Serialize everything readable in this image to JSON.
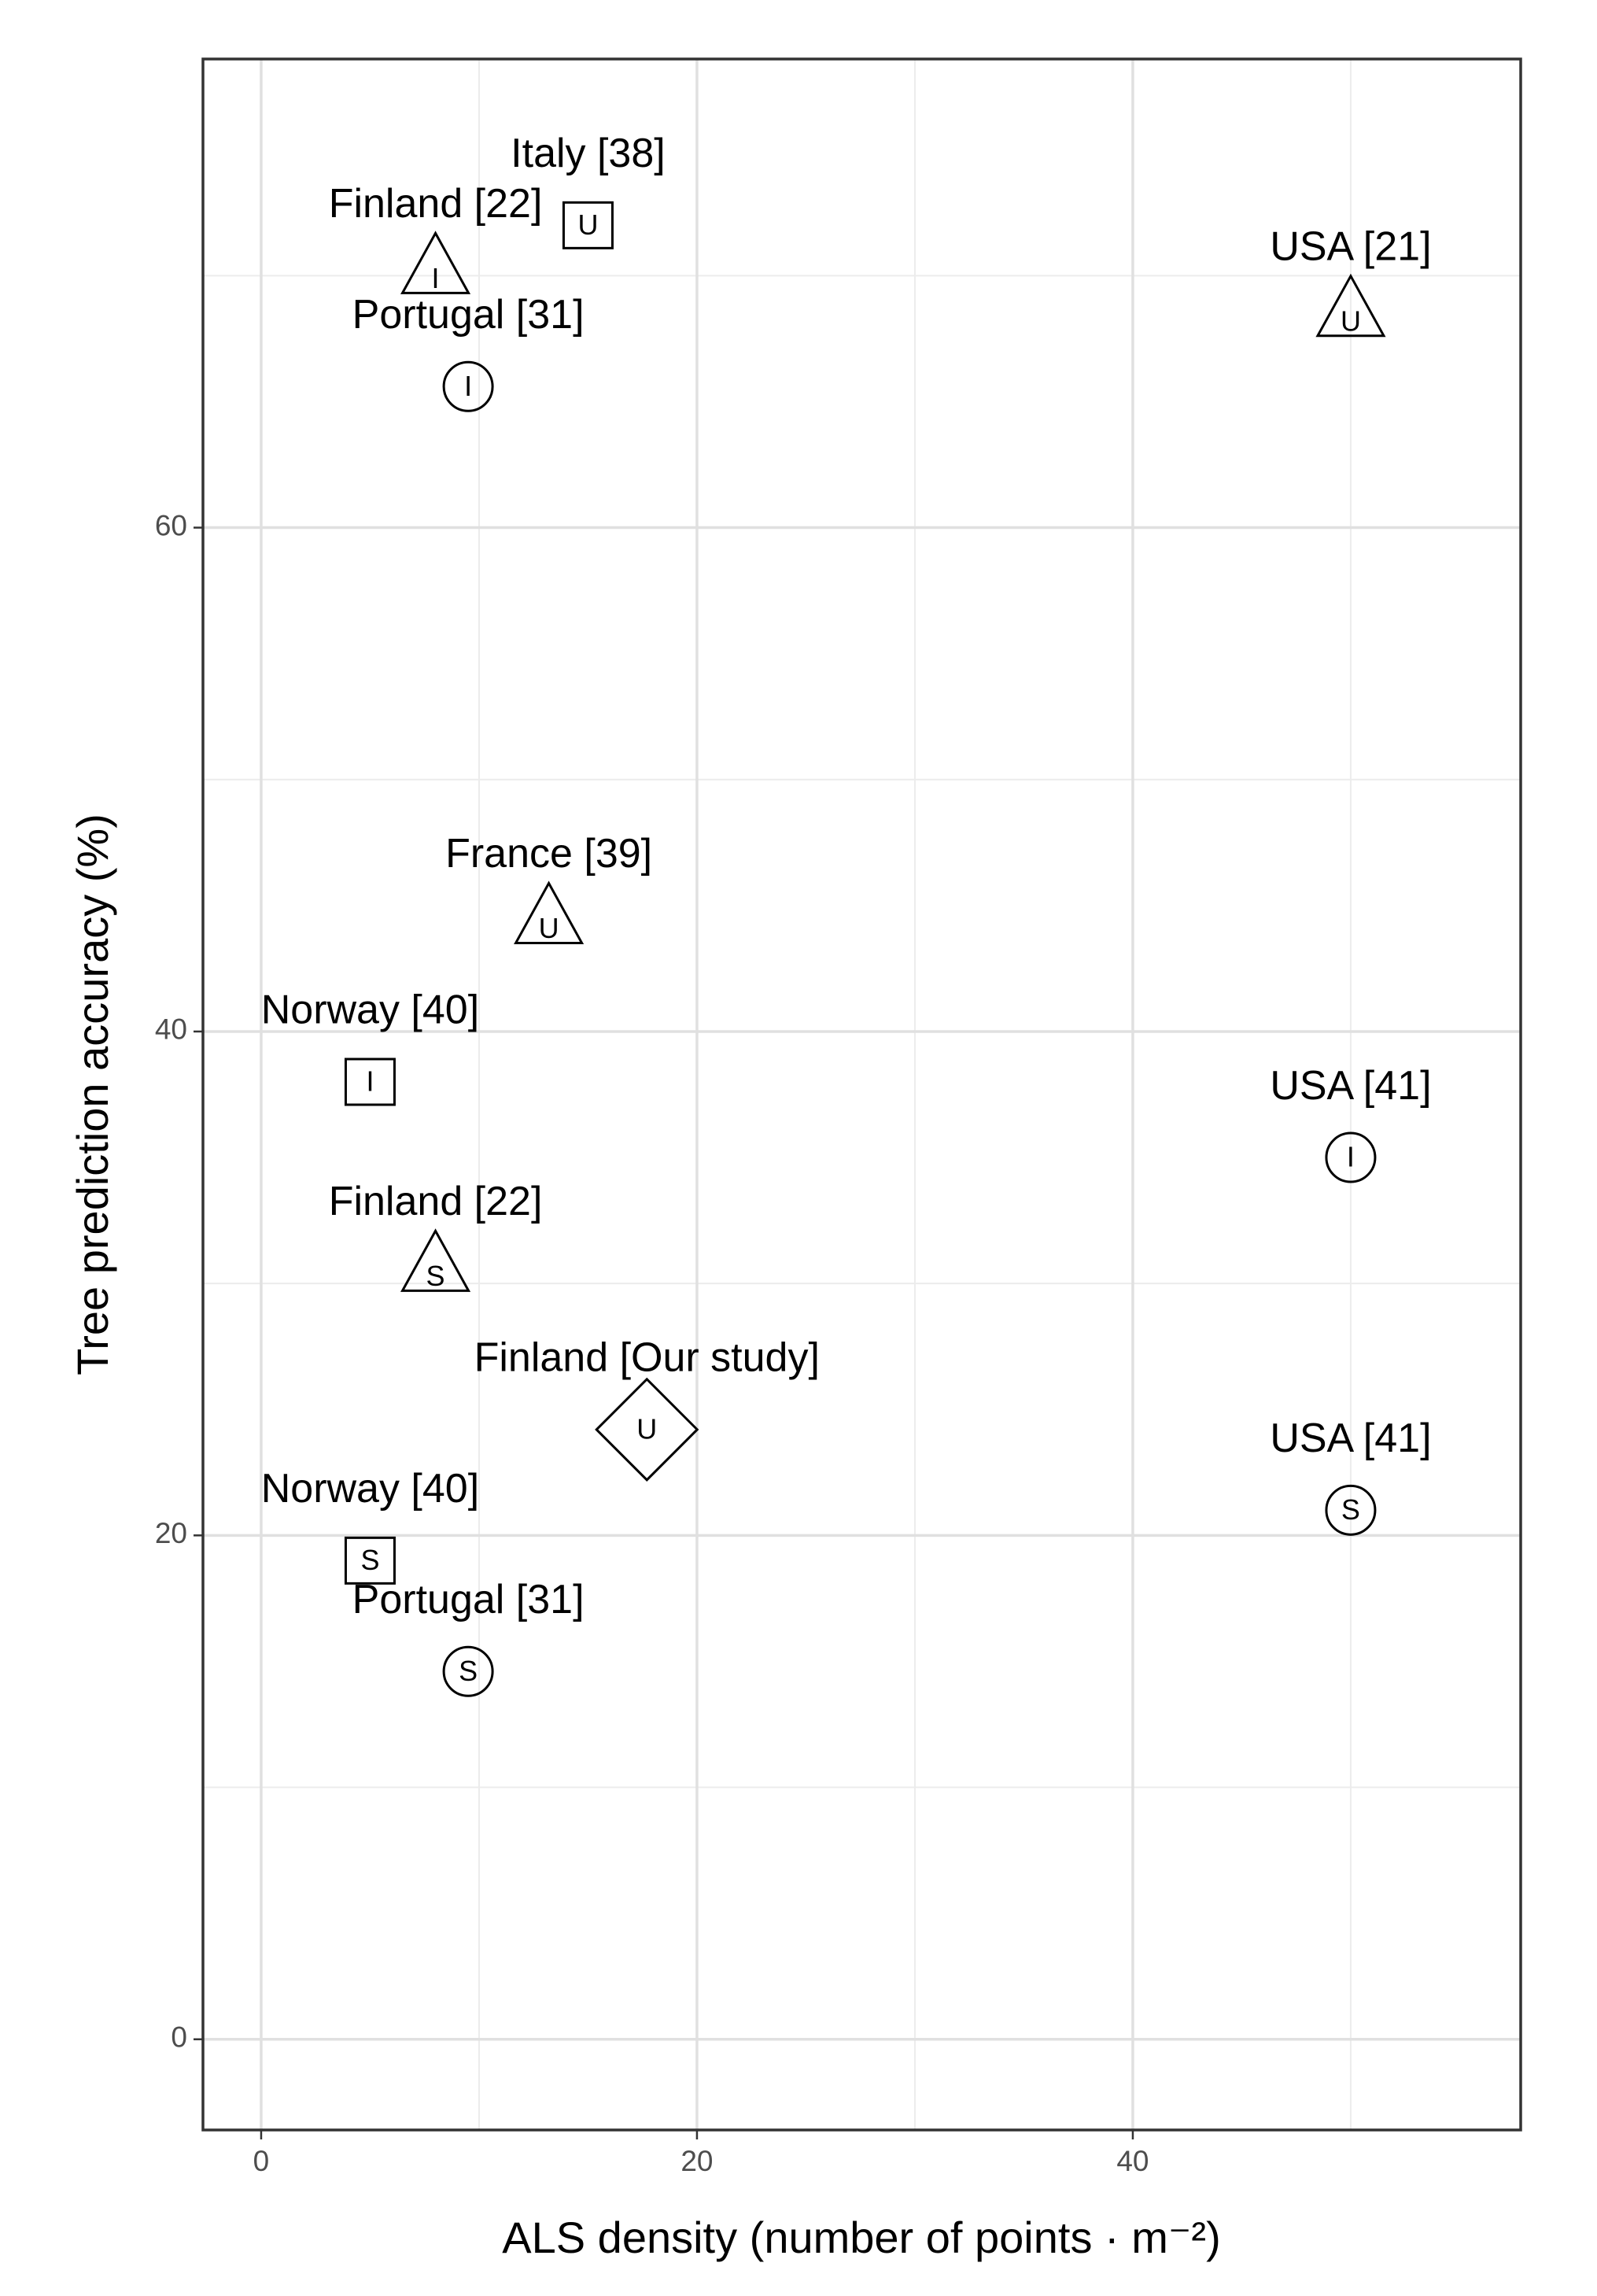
{
  "chart_data": {
    "type": "scatter",
    "xlabel": "ALS density (number of points · m⁻²)",
    "ylabel": "Tree prediction accuracy (%)",
    "xlim": [
      -2.67,
      57.8
    ],
    "ylim": [
      -3.6,
      78.6
    ],
    "xticks": [
      0,
      20,
      40
    ],
    "yticks": [
      0,
      20,
      40,
      60
    ],
    "x_minor_grid": [
      10,
      30,
      50
    ],
    "y_minor_grid": [
      10,
      30,
      50,
      70
    ],
    "grid": true,
    "series": [
      {
        "color": "#000000",
        "labels": [
          "Italy [38]",
          "Finland [22]",
          "Portugal [31]",
          "USA [21]",
          "France [39]",
          "Norway [40]",
          "USA [41]",
          "Finland [22]",
          "Finland [Our study]",
          "USA [41]",
          "Norway [40]",
          "Portugal [31]"
        ],
        "x": [
          15,
          8,
          9.5,
          50,
          13.2,
          5,
          50,
          8,
          17.7,
          50,
          5,
          9.5
        ],
        "values": [
          72,
          70,
          65.6,
          68.3,
          44.2,
          38,
          35,
          30.4,
          24.2,
          21,
          19,
          14.6
        ],
        "shapes": [
          "square",
          "triangle",
          "circle",
          "triangle",
          "triangle",
          "square",
          "circle",
          "triangle",
          "diamond",
          "circle",
          "square",
          "circle"
        ],
        "codes": [
          "U",
          "I",
          "I",
          "U",
          "U",
          "I",
          "I",
          "S",
          "U",
          "S",
          "S",
          "S"
        ]
      }
    ]
  }
}
